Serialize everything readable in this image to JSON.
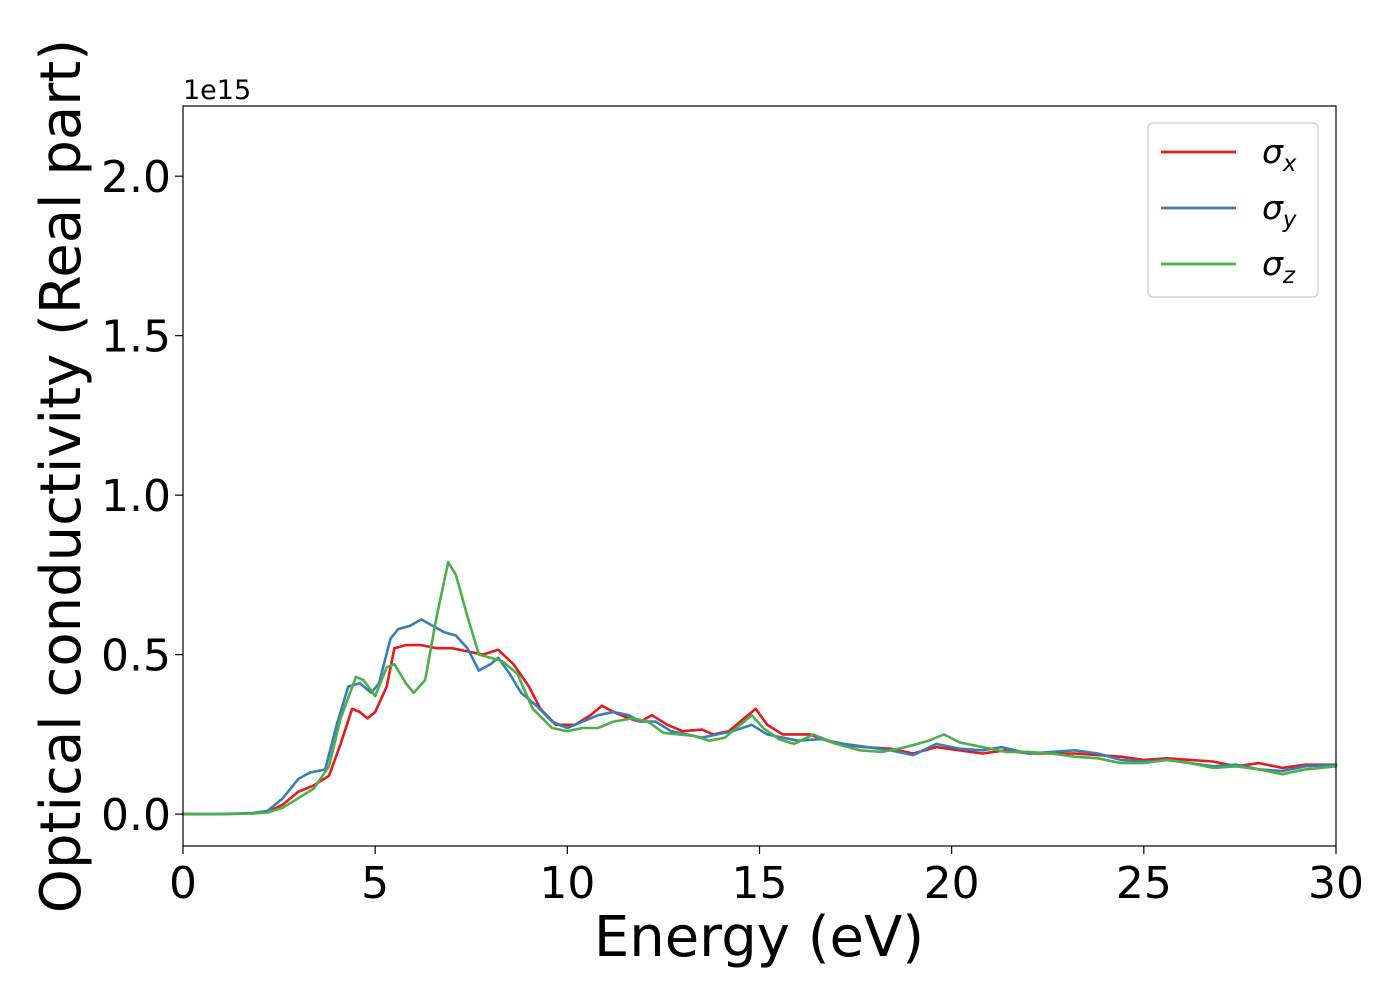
{
  "chart_data": {
    "type": "line",
    "title": "",
    "xlabel": "Energy (eV)",
    "ylabel": "Optical conductivity (Real part)",
    "y_offset_label": "1e15",
    "xlim": [
      0,
      30
    ],
    "ylim": [
      -0.1,
      2.22
    ],
    "y_scale_factor": 1000000000000000.0,
    "xticks": [
      0,
      5,
      10,
      15,
      20,
      25,
      30
    ],
    "xtick_labels": [
      "0",
      "5",
      "10",
      "15",
      "20",
      "25",
      "30"
    ],
    "yticks": [
      0.0,
      0.5,
      1.0,
      1.5,
      2.0
    ],
    "ytick_labels": [
      "0.0",
      "0.5",
      "1.0",
      "1.5",
      "2.0"
    ],
    "grid": false,
    "legend_position": "top-right",
    "series": [
      {
        "name": "σx",
        "base": "σ",
        "sub": "x",
        "color": "#e41a1c",
        "points": [
          [
            0,
            0
          ],
          [
            1,
            0
          ],
          [
            1.8,
            0.002
          ],
          [
            2.2,
            0.006
          ],
          [
            2.6,
            0.03
          ],
          [
            3.0,
            0.07
          ],
          [
            3.4,
            0.09
          ],
          [
            3.8,
            0.12
          ],
          [
            4.1,
            0.22
          ],
          [
            4.4,
            0.33
          ],
          [
            4.6,
            0.32
          ],
          [
            4.8,
            0.3
          ],
          [
            5.0,
            0.32
          ],
          [
            5.3,
            0.4
          ],
          [
            5.5,
            0.52
          ],
          [
            5.8,
            0.53
          ],
          [
            6.2,
            0.53
          ],
          [
            6.6,
            0.52
          ],
          [
            7.0,
            0.52
          ],
          [
            7.4,
            0.51
          ],
          [
            7.8,
            0.5
          ],
          [
            8.2,
            0.515
          ],
          [
            8.6,
            0.47
          ],
          [
            9.0,
            0.4
          ],
          [
            9.3,
            0.33
          ],
          [
            9.7,
            0.28
          ],
          [
            10.2,
            0.28
          ],
          [
            10.6,
            0.31
          ],
          [
            10.9,
            0.34
          ],
          [
            11.2,
            0.32
          ],
          [
            11.6,
            0.3
          ],
          [
            11.9,
            0.29
          ],
          [
            12.2,
            0.31
          ],
          [
            12.6,
            0.28
          ],
          [
            13.0,
            0.26
          ],
          [
            13.5,
            0.265
          ],
          [
            13.8,
            0.25
          ],
          [
            14.2,
            0.26
          ],
          [
            14.6,
            0.3
          ],
          [
            14.9,
            0.33
          ],
          [
            15.2,
            0.28
          ],
          [
            15.6,
            0.25
          ],
          [
            16.3,
            0.25
          ],
          [
            17.0,
            0.22
          ],
          [
            17.7,
            0.21
          ],
          [
            18.4,
            0.205
          ],
          [
            19.0,
            0.19
          ],
          [
            19.6,
            0.21
          ],
          [
            20.2,
            0.2
          ],
          [
            20.8,
            0.19
          ],
          [
            21.4,
            0.2
          ],
          [
            22.0,
            0.19
          ],
          [
            22.6,
            0.19
          ],
          [
            23.2,
            0.19
          ],
          [
            23.8,
            0.185
          ],
          [
            24.4,
            0.18
          ],
          [
            25.0,
            0.17
          ],
          [
            25.6,
            0.175
          ],
          [
            26.2,
            0.17
          ],
          [
            26.8,
            0.165
          ],
          [
            27.4,
            0.15
          ],
          [
            28.0,
            0.16
          ],
          [
            28.6,
            0.145
          ],
          [
            29.2,
            0.155
          ],
          [
            30,
            0.155
          ]
        ]
      },
      {
        "name": "σy",
        "base": "σ",
        "sub": "y",
        "color": "#377eb8",
        "points": [
          [
            0,
            0
          ],
          [
            1,
            0
          ],
          [
            1.8,
            0.003
          ],
          [
            2.2,
            0.01
          ],
          [
            2.6,
            0.05
          ],
          [
            3.0,
            0.11
          ],
          [
            3.3,
            0.13
          ],
          [
            3.7,
            0.14
          ],
          [
            4.0,
            0.28
          ],
          [
            4.3,
            0.4
          ],
          [
            4.6,
            0.41
          ],
          [
            4.9,
            0.38
          ],
          [
            5.1,
            0.41
          ],
          [
            5.4,
            0.55
          ],
          [
            5.6,
            0.58
          ],
          [
            5.9,
            0.59
          ],
          [
            6.2,
            0.61
          ],
          [
            6.5,
            0.59
          ],
          [
            6.8,
            0.57
          ],
          [
            7.1,
            0.56
          ],
          [
            7.4,
            0.52
          ],
          [
            7.7,
            0.45
          ],
          [
            8.0,
            0.47
          ],
          [
            8.2,
            0.49
          ],
          [
            8.5,
            0.44
          ],
          [
            8.8,
            0.38
          ],
          [
            9.2,
            0.34
          ],
          [
            9.6,
            0.29
          ],
          [
            10.0,
            0.27
          ],
          [
            10.4,
            0.29
          ],
          [
            10.8,
            0.31
          ],
          [
            11.2,
            0.32
          ],
          [
            11.6,
            0.31
          ],
          [
            11.9,
            0.29
          ],
          [
            12.3,
            0.29
          ],
          [
            12.7,
            0.26
          ],
          [
            13.1,
            0.25
          ],
          [
            13.5,
            0.24
          ],
          [
            13.9,
            0.25
          ],
          [
            14.3,
            0.26
          ],
          [
            14.8,
            0.28
          ],
          [
            15.2,
            0.25
          ],
          [
            15.6,
            0.24
          ],
          [
            16.0,
            0.23
          ],
          [
            16.6,
            0.235
          ],
          [
            17.2,
            0.22
          ],
          [
            17.8,
            0.21
          ],
          [
            18.4,
            0.2
          ],
          [
            19.0,
            0.185
          ],
          [
            19.6,
            0.22
          ],
          [
            20.2,
            0.205
          ],
          [
            20.8,
            0.2
          ],
          [
            21.3,
            0.21
          ],
          [
            22.0,
            0.19
          ],
          [
            22.6,
            0.195
          ],
          [
            23.2,
            0.2
          ],
          [
            23.8,
            0.19
          ],
          [
            24.4,
            0.17
          ],
          [
            25.0,
            0.165
          ],
          [
            25.6,
            0.17
          ],
          [
            26.2,
            0.16
          ],
          [
            26.8,
            0.15
          ],
          [
            27.4,
            0.155
          ],
          [
            28.0,
            0.14
          ],
          [
            28.6,
            0.135
          ],
          [
            29.2,
            0.15
          ],
          [
            30,
            0.155
          ]
        ]
      },
      {
        "name": "σz",
        "base": "σ",
        "sub": "z",
        "color": "#4daf4a",
        "points": [
          [
            0,
            0
          ],
          [
            1,
            0
          ],
          [
            1.8,
            0.002
          ],
          [
            2.2,
            0.005
          ],
          [
            2.6,
            0.02
          ],
          [
            3.0,
            0.05
          ],
          [
            3.4,
            0.08
          ],
          [
            3.8,
            0.15
          ],
          [
            4.1,
            0.3
          ],
          [
            4.5,
            0.43
          ],
          [
            4.7,
            0.42
          ],
          [
            5.0,
            0.37
          ],
          [
            5.3,
            0.46
          ],
          [
            5.5,
            0.47
          ],
          [
            5.8,
            0.41
          ],
          [
            6.0,
            0.38
          ],
          [
            6.3,
            0.42
          ],
          [
            6.6,
            0.62
          ],
          [
            6.9,
            0.79
          ],
          [
            7.1,
            0.75
          ],
          [
            7.4,
            0.62
          ],
          [
            7.7,
            0.5
          ],
          [
            8.0,
            0.49
          ],
          [
            8.3,
            0.48
          ],
          [
            8.7,
            0.44
          ],
          [
            9.1,
            0.33
          ],
          [
            9.6,
            0.27
          ],
          [
            10.0,
            0.26
          ],
          [
            10.4,
            0.27
          ],
          [
            10.8,
            0.27
          ],
          [
            11.2,
            0.29
          ],
          [
            11.7,
            0.3
          ],
          [
            12.1,
            0.29
          ],
          [
            12.5,
            0.255
          ],
          [
            12.9,
            0.25
          ],
          [
            13.3,
            0.245
          ],
          [
            13.7,
            0.23
          ],
          [
            14.1,
            0.24
          ],
          [
            14.5,
            0.28
          ],
          [
            14.8,
            0.31
          ],
          [
            15.1,
            0.27
          ],
          [
            15.5,
            0.235
          ],
          [
            15.9,
            0.22
          ],
          [
            16.4,
            0.25
          ],
          [
            17.0,
            0.22
          ],
          [
            17.6,
            0.2
          ],
          [
            18.2,
            0.195
          ],
          [
            18.8,
            0.21
          ],
          [
            19.4,
            0.23
          ],
          [
            19.8,
            0.25
          ],
          [
            20.2,
            0.225
          ],
          [
            20.8,
            0.21
          ],
          [
            21.4,
            0.195
          ],
          [
            22.0,
            0.195
          ],
          [
            22.6,
            0.19
          ],
          [
            23.2,
            0.18
          ],
          [
            23.8,
            0.175
          ],
          [
            24.4,
            0.16
          ],
          [
            25.0,
            0.16
          ],
          [
            25.6,
            0.17
          ],
          [
            26.2,
            0.16
          ],
          [
            26.8,
            0.145
          ],
          [
            27.4,
            0.15
          ],
          [
            28.0,
            0.14
          ],
          [
            28.6,
            0.125
          ],
          [
            29.2,
            0.14
          ],
          [
            30,
            0.15
          ]
        ]
      }
    ]
  }
}
